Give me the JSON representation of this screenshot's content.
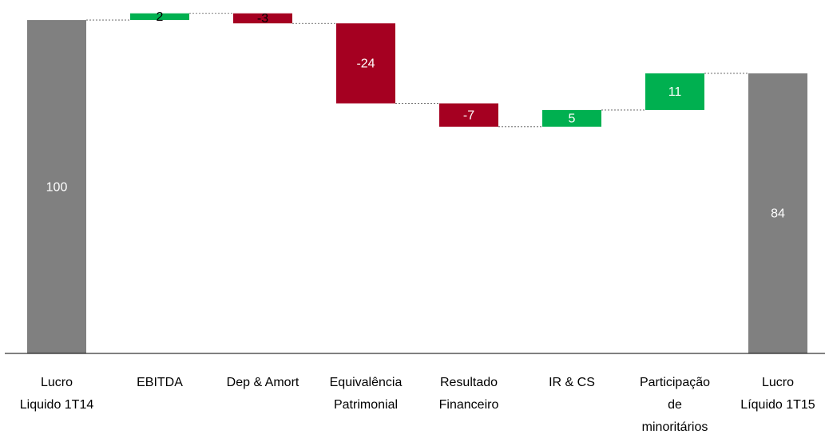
{
  "chart_data": {
    "type": "waterfall",
    "categories": [
      [
        "Lucro",
        "Liquido 1T14"
      ],
      [
        "EBITDA"
      ],
      [
        "Dep & Amort"
      ],
      [
        "Equivalência",
        "Patrimonial"
      ],
      [
        "Resultado",
        "Financeiro"
      ],
      [
        "IR & CS"
      ],
      [
        "Participação",
        "de",
        "minoritários"
      ],
      [
        "Lucro",
        "Líquido 1T15"
      ]
    ],
    "values": [
      100,
      2,
      -3,
      -24,
      -7,
      5,
      11,
      84
    ],
    "colors": {
      "total": "#808080",
      "increase": "#00b050",
      "decrease": "#a50021"
    },
    "ylim": [
      0,
      106
    ]
  }
}
